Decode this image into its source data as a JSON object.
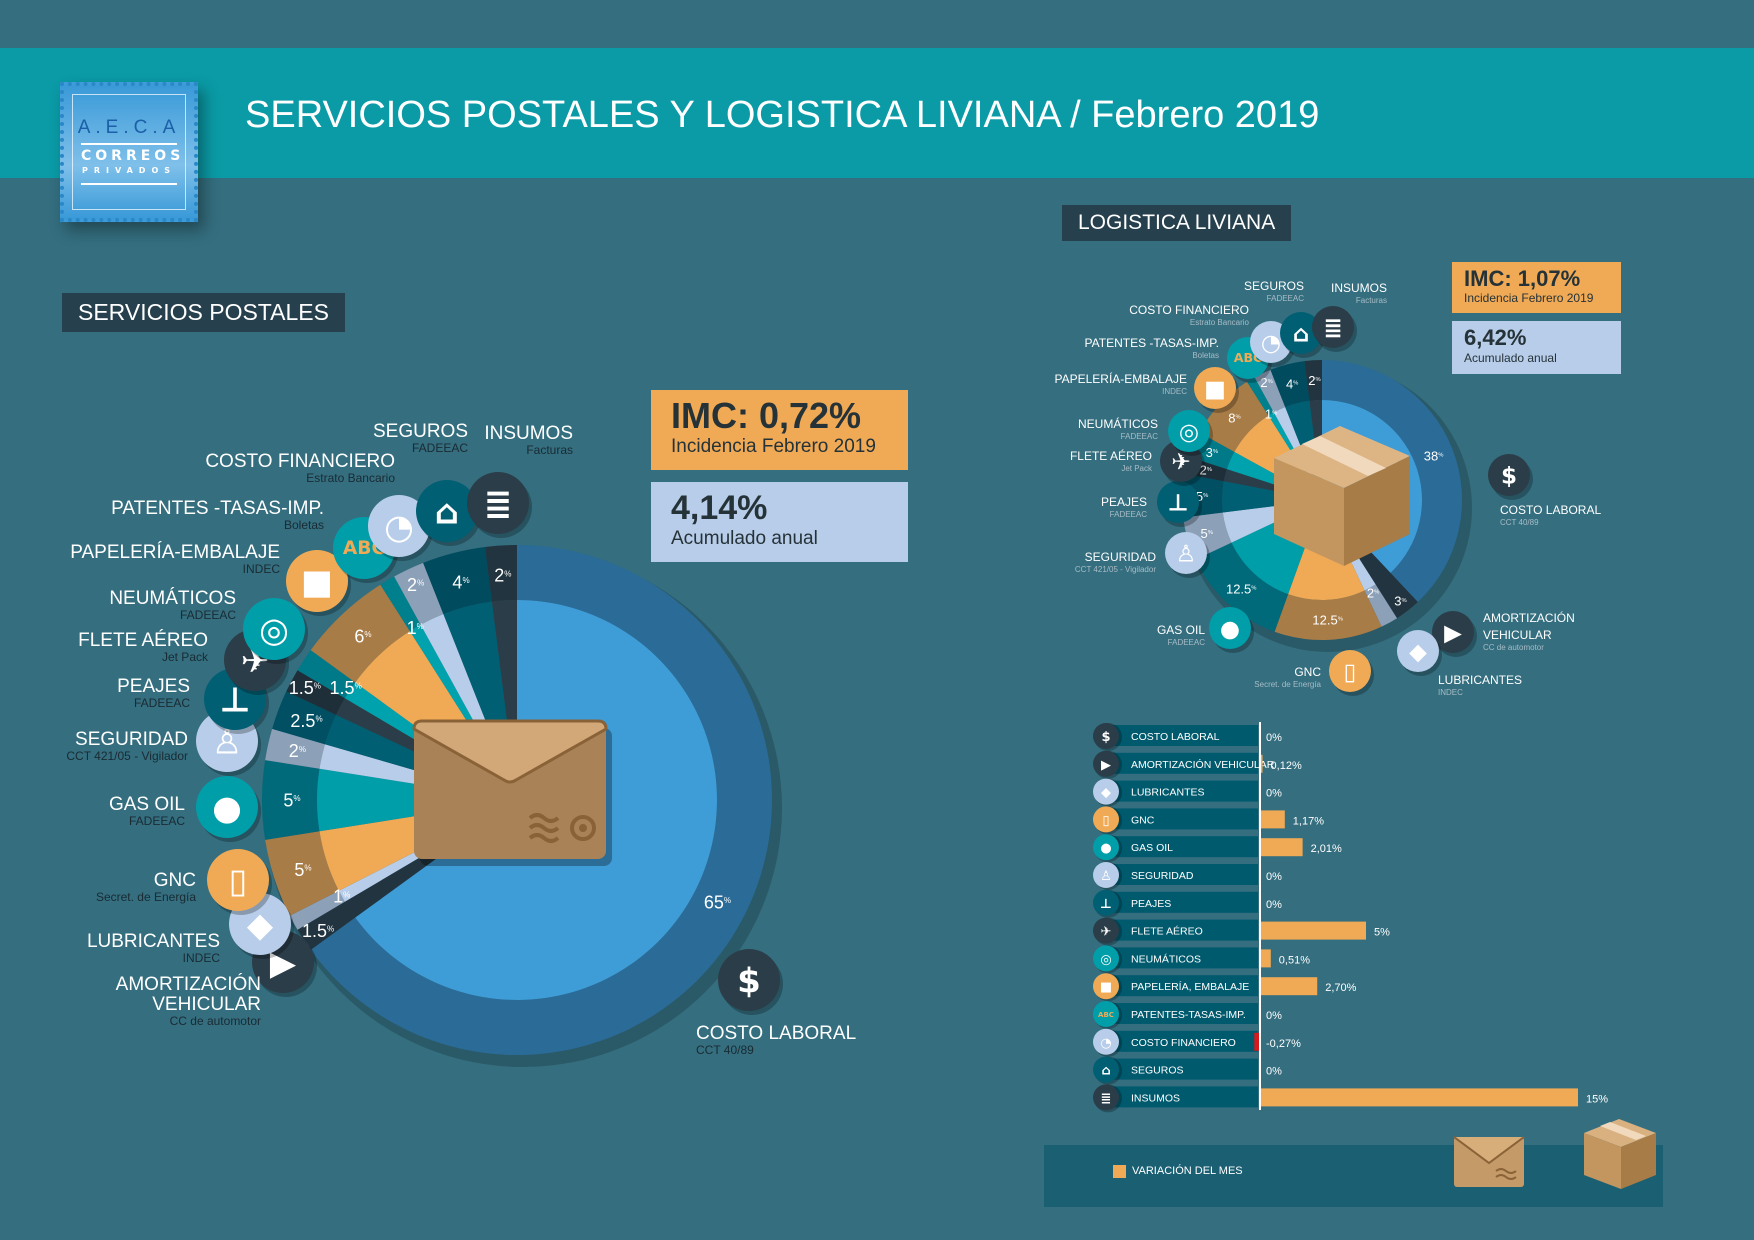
{
  "header": {
    "title": "SERVICIOS POSTALES Y LOGISTICA LIVIANA  / Febrero 2019",
    "logo": {
      "line1": "A.E.C.A",
      "line2": "CORREOS",
      "line3": "PRIVADOS"
    }
  },
  "postales": {
    "section_title": "SERVICIOS POSTALES",
    "imc": "IMC: 0,72%",
    "imc_sub": "Incidencia Febrero 2019",
    "acum": "4,14%",
    "acum_sub": "Acumulado anual"
  },
  "logistica": {
    "section_title": "LOGISTICA LIVIANA",
    "imc": "IMC: 1,07%",
    "imc_sub": "Incidencia Febrero 2019",
    "acum": "6,42%",
    "acum_sub": "Acumulado anual"
  },
  "legend": {
    "label": "VARIACIÓN DEL MES",
    "color": "#f0aa55"
  },
  "categories": [
    {
      "key": "costo-laboral",
      "icon": "dollar-coin-icon",
      "color": "#2b3d48"
    },
    {
      "key": "amortizacion-vehicular",
      "icon": "truck-icon",
      "color": "#2b3d48"
    },
    {
      "key": "lubricantes",
      "icon": "oil-can-icon",
      "color": "#b7cde9"
    },
    {
      "key": "gnc",
      "icon": "gas-pump-icon",
      "color": "#f0aa55"
    },
    {
      "key": "gas-oil",
      "icon": "fuel-tank-icon",
      "color": "#009ea9"
    },
    {
      "key": "seguridad",
      "icon": "security-guard-icon",
      "color": "#b7cde9"
    },
    {
      "key": "peajes",
      "icon": "toll-barrier-icon",
      "color": "#005f73"
    },
    {
      "key": "flete-aereo",
      "icon": "airplane-icon",
      "color": "#2b3d48"
    },
    {
      "key": "neumaticos",
      "icon": "tire-icon",
      "color": "#009ea9"
    },
    {
      "key": "papeleria-embalaje",
      "icon": "package-icon",
      "color": "#f0aa55"
    },
    {
      "key": "patentes",
      "icon": "license-plate-icon",
      "color": "#009ea9"
    },
    {
      "key": "costo-financiero",
      "icon": "pie-chart-icon",
      "color": "#b7cde9"
    },
    {
      "key": "seguros",
      "icon": "padlock-icon",
      "color": "#005f73"
    },
    {
      "key": "insumos",
      "icon": "invoice-icon",
      "color": "#2b3d48"
    }
  ],
  "chart_data": [
    {
      "type": "pie",
      "title": "SERVICIOS POSTALES",
      "unit": "%",
      "slices": [
        {
          "label": "COSTO LABORAL",
          "source": "CCT 40/89",
          "value": 65,
          "value_label": "65"
        },
        {
          "label": "AMORTIZACIÓN\nVEHICULAR",
          "source": "CC de automotor",
          "value": 1.5,
          "value_label": "1.5"
        },
        {
          "label": "LUBRICANTES",
          "source": "INDEC",
          "value": 1,
          "value_label": "1"
        },
        {
          "label": "GNC",
          "source": "Secret. de Energía",
          "value": 5,
          "value_label": "5"
        },
        {
          "label": "GAS OIL",
          "source": "FADEEAC",
          "value": 5,
          "value_label": "5"
        },
        {
          "label": "SEGURIDAD",
          "source": "CCT 421/05 - Vigilador",
          "value": 2,
          "value_label": "2"
        },
        {
          "label": "PEAJES",
          "source": "FADEEAC",
          "value": 2.5,
          "value_label": "2.5"
        },
        {
          "label": "FLETE AÉREO",
          "source": "Jet Pack",
          "value": 1.5,
          "value_label": "1.5"
        },
        {
          "label": "NEUMÁTICOS",
          "source": "FADEEAC",
          "value": 1.5,
          "value_label": "1.5"
        },
        {
          "label": "PAPELERÍA-EMBALAJE",
          "source": "INDEC",
          "value": 6,
          "value_label": "6"
        },
        {
          "label": "PATENTES -TASAS-IMP.",
          "source": "Boletas",
          "value": 1,
          "value_label": "1"
        },
        {
          "label": "COSTO FINANCIERO",
          "source": "Estrato Bancario",
          "value": 2,
          "value_label": "2"
        },
        {
          "label": "SEGUROS",
          "source": "FADEEAC",
          "value": 4,
          "value_label": "4"
        },
        {
          "label": "INSUMOS",
          "source": "Facturas",
          "value": 2,
          "value_label": "2"
        }
      ]
    },
    {
      "type": "pie",
      "title": "LOGISTICA LIVIANA",
      "unit": "%",
      "slices": [
        {
          "label": "COSTO LABORAL",
          "source": "CCT 40/89",
          "value": 38,
          "value_label": "38"
        },
        {
          "label": "AMORTIZACIÓN\nVEHICULAR",
          "source": "CC de automotor",
          "value": 3,
          "value_label": "3"
        },
        {
          "label": "LUBRICANTES",
          "source": "INDEC",
          "value": 2,
          "value_label": "2"
        },
        {
          "label": "GNC",
          "source": "Secret. de Energía",
          "value": 12.5,
          "value_label": "12.5"
        },
        {
          "label": "GAS OIL",
          "source": "FADEEAC",
          "value": 12.5,
          "value_label": "12.5"
        },
        {
          "label": "SEGURIDAD",
          "source": "CCT 421/05 - Vigilador",
          "value": 5,
          "value_label": "5"
        },
        {
          "label": "PEAJES",
          "source": "FADEEAC",
          "value": 5,
          "value_label": "5"
        },
        {
          "label": "FLETE AÉREO",
          "source": "Jet Pack",
          "value": 2,
          "value_label": "2"
        },
        {
          "label": "NEUMÁTICOS",
          "source": "FADEEAC",
          "value": 3,
          "value_label": "3"
        },
        {
          "label": "PAPELERÍA-EMBALAJE",
          "source": "INDEC",
          "value": 8,
          "value_label": "8"
        },
        {
          "label": "PATENTES -TASAS-IMP.",
          "source": "Boletas",
          "value": 1,
          "value_label": "1"
        },
        {
          "label": "COSTO FINANCIERO",
          "source": "Estrato Bancario",
          "value": 2,
          "value_label": "2"
        },
        {
          "label": "SEGUROS",
          "source": "FADEEAC",
          "value": 4,
          "value_label": "4"
        },
        {
          "label": "INSUMOS",
          "source": "Facturas",
          "value": 2,
          "value_label": "2"
        }
      ]
    },
    {
      "type": "bar",
      "title": "VARIACIÓN DEL MES",
      "orientation": "horizontal",
      "unit": "%",
      "categories": [
        "COSTO LABORAL",
        "AMORTIZACIÓN VEHICULAR",
        "LUBRICANTES",
        "GNC",
        "GAS OIL",
        "SEGURIDAD",
        "PEAJES",
        "FLETE AÉREO",
        "NEUMÁTICOS",
        "PAPELERÍA, EMBALAJE",
        "PATENTES-TASAS-IMP.",
        "COSTO FINANCIERO",
        "SEGUROS",
        "INSUMOS"
      ],
      "values": [
        0,
        0.12,
        0,
        1.17,
        2.01,
        0,
        0,
        5,
        0.51,
        2.7,
        0,
        -0.27,
        0,
        15
      ],
      "value_labels": [
        "0%",
        "0,12%",
        "0%",
        "1,17%",
        "2,01%",
        "0%",
        "0%",
        "5%",
        "0,51%",
        "2,70%",
        "0%",
        "-0,27%",
        "0%",
        "15%"
      ],
      "colors": {
        "positive": "#f0aa55",
        "negative": "#d7191c"
      }
    }
  ]
}
